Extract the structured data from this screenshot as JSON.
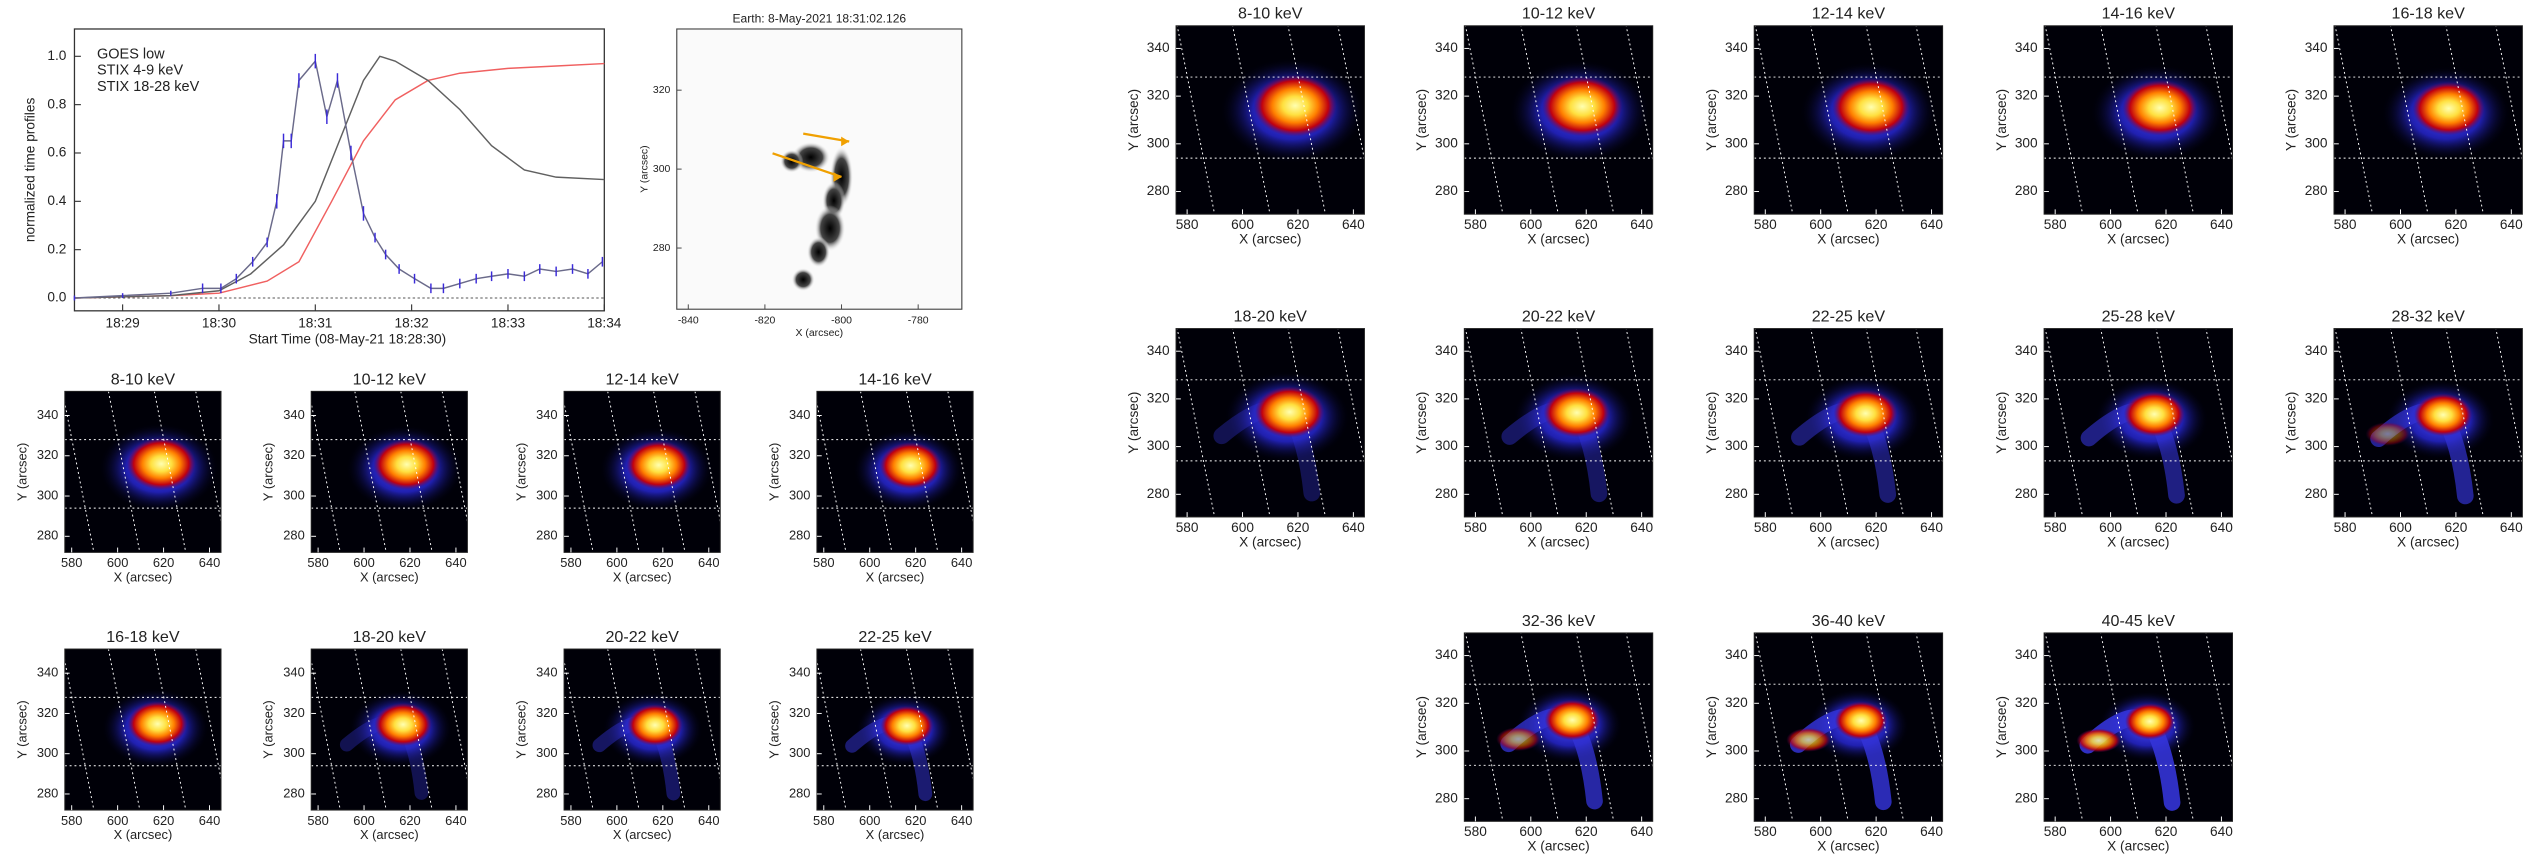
{
  "chart_data": [
    {
      "type": "line",
      "xlabel": "Start Time (08-May-21 18:28:30)",
      "ylabel": "normalized time profiles",
      "xlim": [
        0,
        5.5
      ],
      "xticks": [
        {
          "value": 0.5,
          "label": "18:29"
        },
        {
          "value": 1.5,
          "label": "18:30"
        },
        {
          "value": 2.5,
          "label": "18:31"
        },
        {
          "value": 3.5,
          "label": "18:32"
        },
        {
          "value": 4.5,
          "label": "18:33"
        },
        {
          "value": 5.5,
          "label": "18:34"
        }
      ],
      "ylim": [
        -0.053,
        1.113
      ],
      "yticks": [
        {
          "value": 0,
          "label": "0.0"
        },
        0.2,
        0.4,
        0.6,
        0.8,
        {
          "value": 1,
          "label": "1.0"
        }
      ],
      "hline": 0,
      "legend": "upper left",
      "series": [
        {
          "name": "GOES low",
          "color": "#ee2a2a",
          "line_color": "#f06060",
          "x": [
            0,
            1.0,
            1.5,
            2.0,
            2.33,
            2.67,
            3.0,
            3.33,
            3.67,
            4.0,
            4.5,
            5.0,
            5.5
          ],
          "values": [
            0.0,
            0.01,
            0.02,
            0.07,
            0.15,
            0.4,
            0.65,
            0.82,
            0.9,
            0.93,
            0.95,
            0.96,
            0.97
          ]
        },
        {
          "name": "STIX 4-9 keV",
          "color": "#e020e0",
          "line_color": "#606060",
          "x": [
            0,
            1.0,
            1.5,
            1.83,
            2.17,
            2.5,
            2.75,
            3.0,
            3.17,
            3.33,
            3.67,
            4.0,
            4.33,
            4.67,
            5.0,
            5.5
          ],
          "values": [
            0.0,
            0.01,
            0.03,
            0.1,
            0.22,
            0.4,
            0.65,
            0.9,
            1.0,
            0.98,
            0.9,
            0.78,
            0.63,
            0.53,
            0.5,
            0.49
          ]
        },
        {
          "name": "STIX 18-28 keV",
          "color": "#3a2ad8",
          "line_color": "#6a6a8a",
          "error_color": "#3a2ad8",
          "x": [
            0,
            0.5,
            1.0,
            1.33,
            1.52,
            1.68,
            1.85,
            2.0,
            2.1,
            2.17,
            2.25,
            2.33,
            2.5,
            2.62,
            2.73,
            2.87,
            3.0,
            3.12,
            3.23,
            3.37,
            3.53,
            3.7,
            3.83,
            4.0,
            4.17,
            4.33,
            4.5,
            4.67,
            4.83,
            5.0,
            5.17,
            5.33,
            5.48
          ],
          "values": [
            0.0,
            0.01,
            0.02,
            0.04,
            0.04,
            0.08,
            0.15,
            0.23,
            0.4,
            0.65,
            0.65,
            0.9,
            0.98,
            0.75,
            0.9,
            0.6,
            0.35,
            0.25,
            0.18,
            0.12,
            0.08,
            0.04,
            0.04,
            0.06,
            0.08,
            0.09,
            0.1,
            0.09,
            0.12,
            0.11,
            0.12,
            0.1,
            0.15
          ],
          "errors": [
            0.01,
            0.01,
            0.01,
            0.02,
            0.02,
            0.02,
            0.02,
            0.02,
            0.03,
            0.03,
            0.03,
            0.03,
            0.03,
            0.03,
            0.03,
            0.03,
            0.03,
            0.02,
            0.02,
            0.02,
            0.02,
            0.02,
            0.02,
            0.02,
            0.02,
            0.02,
            0.02,
            0.02,
            0.02,
            0.02,
            0.02,
            0.02,
            0.02
          ]
        }
      ]
    },
    {
      "type": "image",
      "title": "Earth:  8-May-2021 18:31:02.126",
      "xlabel": "X (arcsec)",
      "ylabel": "Y (arcsec)",
      "xlim": [
        -843,
        -768.6
      ],
      "xticks": [
        -840,
        -820,
        -800,
        -780
      ],
      "ylim": [
        264.5,
        335.5
      ],
      "yticks": [
        280,
        300,
        320
      ]
    },
    {
      "type": "image_grid",
      "xlabel": "X (arcsec)",
      "ylabel": "Y (arcsec)",
      "xlim": [
        577,
        645
      ],
      "xticks": [
        580,
        600,
        620,
        640
      ],
      "ylim": [
        272,
        352
      ],
      "yticks": [
        280,
        300,
        320,
        340
      ],
      "panels": [
        "8-10 keV",
        "10-12 keV",
        "12-14 keV",
        "14-16 keV",
        "16-18 keV",
        "18-20 keV",
        "20-22 keV",
        "22-25 keV"
      ]
    },
    {
      "type": "image_grid",
      "xlabel": "X (arcsec)",
      "ylabel": "Y (arcsec)",
      "xlim": [
        576,
        644
      ],
      "xticks": [
        580,
        600,
        620,
        640
      ],
      "ylim": [
        270.5,
        349.5
      ],
      "yticks": [
        280,
        300,
        320,
        340
      ],
      "panels": [
        "8-10 keV",
        "10-12 keV",
        "12-14 keV",
        "14-16 keV",
        "16-18 keV",
        "18-20 keV",
        "20-22 keV",
        "22-25 keV",
        "25-28 keV",
        "28-32 keV",
        "32-36 keV",
        "36-40 keV",
        "40-45 keV"
      ]
    }
  ]
}
